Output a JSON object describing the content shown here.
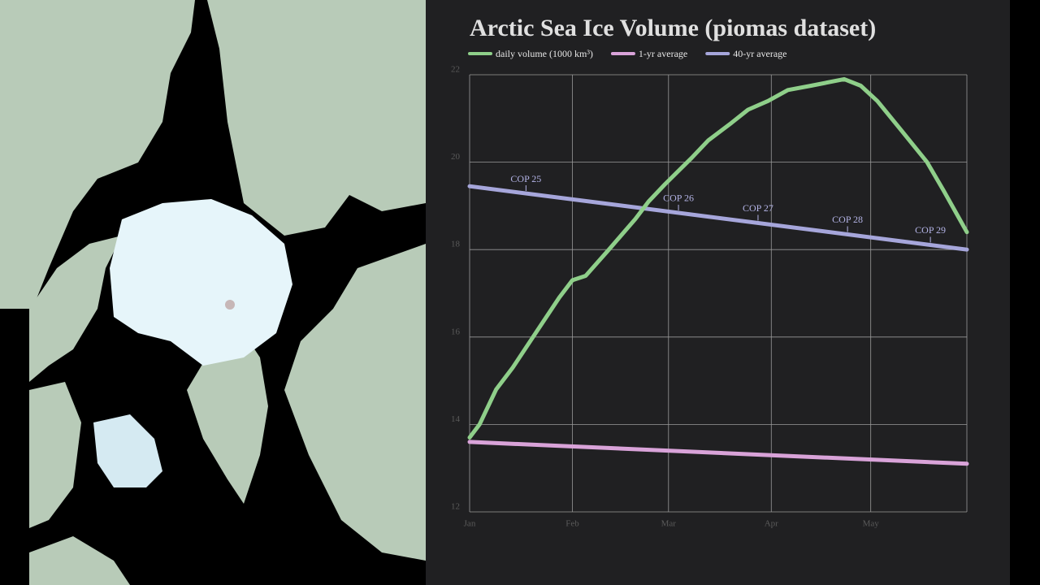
{
  "chart_data": {
    "type": "line",
    "title": "Arctic Sea Ice Volume (piomas dataset)",
    "xlim": [
      0,
      150
    ],
    "ylim": [
      12,
      22
    ],
    "xticks": [
      {
        "value": 0,
        "label": "Jan"
      },
      {
        "value": 31,
        "label": "Feb"
      },
      {
        "value": 60,
        "label": "Mar"
      },
      {
        "value": 91,
        "label": "Apr"
      },
      {
        "value": 121,
        "label": "May"
      }
    ],
    "yticks": [
      12,
      14,
      16,
      18,
      20,
      22
    ],
    "grid": true,
    "legend": "top-left",
    "series": [
      {
        "name": "daily volume (1000 km³)",
        "color": "#8fcf8a",
        "x": [
          0,
          3,
          8,
          13,
          20,
          27,
          31,
          35,
          42,
          50,
          54,
          59,
          67,
          72,
          79,
          84,
          90,
          96,
          103,
          113,
          118,
          123,
          130,
          138,
          143,
          150
        ],
        "values": [
          13.7,
          14.0,
          14.8,
          15.3,
          16.1,
          16.9,
          17.3,
          17.4,
          18.0,
          18.7,
          19.1,
          19.5,
          20.1,
          20.5,
          20.9,
          21.2,
          21.4,
          21.65,
          21.75,
          21.9,
          21.75,
          21.4,
          20.75,
          20.0,
          19.35,
          18.4
        ]
      },
      {
        "name": "1-yr average",
        "color": "#d9a3d9",
        "x": [
          0,
          150
        ],
        "values": [
          13.6,
          13.1
        ]
      },
      {
        "name": "40-yr average",
        "color": "#a6a6db",
        "x": [
          0,
          150
        ],
        "values": [
          19.45,
          18.0
        ]
      }
    ],
    "annotations": [
      {
        "text": "COP 25",
        "x": 17
      },
      {
        "text": "COP 26",
        "x": 63
      },
      {
        "text": "COP 27",
        "x": 87
      },
      {
        "text": "COP 28",
        "x": 114
      },
      {
        "text": "COP 29",
        "x": 139
      }
    ]
  }
}
